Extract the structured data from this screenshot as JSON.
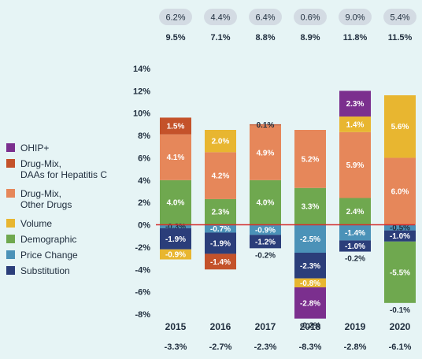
{
  "chart_data": {
    "type": "bar",
    "stacked": true,
    "categories": [
      "2015",
      "2016",
      "2017",
      "2018",
      "2019",
      "2020"
    ],
    "top_row_values": [
      "6.2%",
      "4.4%",
      "6.4%",
      "0.6%",
      "9.0%",
      "5.4%"
    ],
    "second_row_values": [
      "9.5%",
      "7.1%",
      "8.8%",
      "8.9%",
      "11.8%",
      "11.5%"
    ],
    "bottom_row_values": [
      "-3.3%",
      "-2.7%",
      "-2.3%",
      "-8.3%",
      "-2.8%",
      "-6.1%"
    ],
    "ylim": [
      -8,
      14
    ],
    "yticks": [
      "14%",
      "12%",
      "10%",
      "8%",
      "6%",
      "4%",
      "2%",
      "0%",
      "-2%",
      "-4%",
      "-6%",
      "-8%"
    ],
    "legend_position": "left",
    "series": [
      {
        "name": "OHIP+",
        "color": "#7b2f8e",
        "values": [
          null,
          null,
          null,
          -2.8,
          2.3,
          null
        ],
        "labels": [
          "",
          "",
          "",
          "-2.8%",
          "2.3%",
          ""
        ]
      },
      {
        "name": "Drug-Mix, DAAs for Hepatitis C",
        "color": "#c4522a",
        "values": [
          1.5,
          -1.4,
          0.1,
          null,
          null,
          null
        ],
        "labels": [
          "1.5%",
          "-1.4%",
          "0.1%",
          "",
          "",
          ""
        ]
      },
      {
        "name": "Drug-Mix, Other Drugs",
        "color": "#e6875a",
        "values": [
          4.1,
          4.2,
          4.9,
          5.2,
          5.9,
          6.0
        ],
        "labels": [
          "4.1%",
          "4.2%",
          "4.9%",
          "5.2%",
          "5.9%",
          "6.0%"
        ]
      },
      {
        "name": "Volume",
        "color": "#e8b630",
        "values": [
          -0.9,
          2.0,
          null,
          -0.8,
          1.4,
          5.6
        ],
        "labels": [
          "-0.9%",
          "2.0%",
          "",
          "-0.8%",
          "1.4%",
          "5.6%"
        ]
      },
      {
        "name": "Demographic",
        "color": "#6fa84f",
        "values": [
          4.0,
          2.3,
          4.0,
          3.3,
          2.4,
          -5.5
        ],
        "labels": [
          "4.0%",
          "2.3%",
          "4.0%",
          "3.3%",
          "2.4%",
          "-5.5%"
        ]
      },
      {
        "name": "Price Change",
        "color": "#4b92b8",
        "values": [
          -0.3,
          -0.7,
          -0.9,
          -2.5,
          -1.4,
          -0.5
        ],
        "labels": [
          "-0.3%",
          "-0.7%",
          "-0.9%",
          "-2.5%",
          "-1.4%",
          "-0.5%"
        ]
      },
      {
        "name": "Substitution",
        "color": "#2b3e7a",
        "values": [
          -1.9,
          -1.9,
          -1.2,
          -2.3,
          -1.0,
          -1.0
        ],
        "labels": [
          "-1.9%",
          "-1.9%",
          "-1.2%",
          "-2.3%",
          "-1.0%",
          "-1.0%"
        ]
      }
    ],
    "small_labels": [
      {
        "category": "2017",
        "label": "-0.2%"
      },
      {
        "category": "2018",
        "label": "-0.2%"
      },
      {
        "category": "2019",
        "label": "-0.2%"
      },
      {
        "category": "2020",
        "label": "-0.1%"
      }
    ],
    "zero_line_color": "#d32f2f"
  }
}
